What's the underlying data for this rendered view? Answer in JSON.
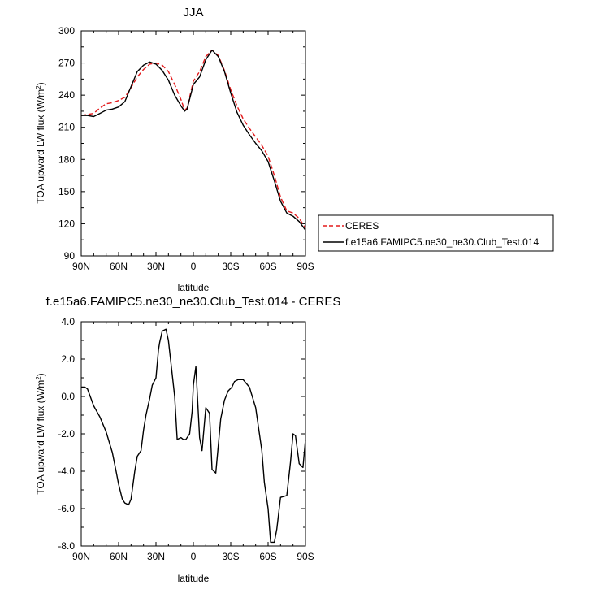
{
  "chart_data": [
    {
      "type": "line",
      "title": "JJA",
      "xlabel": "latitude",
      "ylabel": "TOA upward LW flux (W/m",
      "ylabel_sup": "2",
      "ylabel_end": ")",
      "xlim": [
        90,
        -90
      ],
      "ylim": [
        90,
        300
      ],
      "xticks": [
        90,
        60,
        30,
        0,
        -30,
        -60,
        -90
      ],
      "xtick_labels": [
        "90N",
        "60N",
        "30N",
        "0",
        "30S",
        "60S",
        "90S"
      ],
      "yticks": [
        90,
        120,
        150,
        180,
        210,
        240,
        270,
        300
      ],
      "ytick_labels": [
        "90",
        "120",
        "150",
        "180",
        "210",
        "240",
        "270",
        "300"
      ],
      "legend": "right",
      "series": [
        {
          "name": "CERES",
          "color": "#e31a1c",
          "dash": "dashed",
          "x": [
            90,
            85,
            80,
            75,
            70,
            65,
            60,
            55,
            50,
            45,
            40,
            35,
            30,
            25,
            20,
            15,
            10,
            7,
            5,
            0,
            -5,
            -10,
            -15,
            -20,
            -25,
            -30,
            -35,
            -40,
            -45,
            -50,
            -55,
            -60,
            -65,
            -70,
            -75,
            -80,
            -85,
            -90
          ],
          "y": [
            221,
            222,
            223,
            228,
            232,
            233,
            235,
            238,
            247,
            257,
            264,
            269,
            270,
            268,
            262,
            250,
            236,
            226,
            228,
            253,
            262,
            276,
            282,
            277,
            263,
            245,
            230,
            218,
            209,
            201,
            193,
            183,
            165,
            145,
            132,
            130,
            125,
            116
          ]
        },
        {
          "name": "f.e15a6.FAMIPC5.ne30_ne30.Club_Test.014",
          "color": "#000000",
          "dash": "solid",
          "x": [
            90,
            85,
            80,
            75,
            70,
            65,
            60,
            55,
            50,
            45,
            40,
            35,
            30,
            25,
            20,
            15,
            10,
            7,
            5,
            0,
            -5,
            -10,
            -15,
            -20,
            -25,
            -30,
            -35,
            -40,
            -45,
            -50,
            -55,
            -60,
            -65,
            -70,
            -75,
            -80,
            -85,
            -90
          ],
          "y": [
            221,
            221,
            220,
            223,
            226,
            227,
            229,
            234,
            248,
            262,
            268,
            271,
            269,
            263,
            254,
            240,
            230,
            225,
            227,
            250,
            257,
            273,
            282,
            276,
            262,
            242,
            224,
            212,
            203,
            195,
            188,
            178,
            160,
            141,
            130,
            127,
            122,
            114
          ]
        }
      ]
    },
    {
      "type": "line",
      "title": "f.e15a6.FAMIPC5.ne30_ne30.Club_Test.014 - CERES",
      "xlabel": "latitude",
      "ylabel": "TOA upward LW flux (W/m",
      "ylabel_sup": "2",
      "ylabel_end": ")",
      "xlim": [
        90,
        -90
      ],
      "ylim": [
        -8,
        4
      ],
      "xticks": [
        90,
        60,
        30,
        0,
        -30,
        -60,
        -90
      ],
      "xtick_labels": [
        "90N",
        "60N",
        "30N",
        "0",
        "30S",
        "60S",
        "90S"
      ],
      "yticks": [
        -8,
        -6,
        -4,
        -2,
        0,
        2,
        4
      ],
      "ytick_labels": [
        "-8.0",
        "-6.0",
        "-4.0",
        "-2.0",
        "0.0",
        "2.0",
        "4.0"
      ],
      "series": [
        {
          "color": "#000000",
          "dash": "solid",
          "x": [
            90,
            87,
            85,
            80,
            75,
            70,
            65,
            62,
            60,
            57,
            55,
            52,
            50,
            47,
            45,
            42,
            40,
            38,
            35,
            33,
            30,
            28,
            27,
            25,
            22,
            20,
            18,
            15,
            13,
            10,
            8,
            6,
            3,
            1,
            0,
            -2,
            -5,
            -7,
            -10,
            -13,
            -15,
            -18,
            -22,
            -25,
            -28,
            -31,
            -33,
            -36,
            -40,
            -45,
            -50,
            -55,
            -57,
            -60,
            -62,
            -65,
            -67,
            -70,
            -75,
            -78,
            -80,
            -82,
            -85,
            -88,
            -90
          ],
          "y": [
            0.5,
            0.5,
            0.4,
            -0.5,
            -1.1,
            -1.9,
            -3.0,
            -4.0,
            -4.7,
            -5.5,
            -5.7,
            -5.8,
            -5.5,
            -4.0,
            -3.2,
            -2.9,
            -1.8,
            -1.0,
            -0.1,
            0.6,
            1.0,
            2.5,
            2.9,
            3.5,
            3.6,
            3.0,
            1.8,
            0.0,
            -2.3,
            -2.2,
            -2.3,
            -2.3,
            -2.0,
            -0.8,
            0.6,
            1.6,
            -2.2,
            -2.9,
            -0.6,
            -0.9,
            -3.9,
            -4.1,
            -1.2,
            -0.2,
            0.3,
            0.5,
            0.8,
            0.9,
            0.9,
            0.5,
            -0.6,
            -2.9,
            -4.6,
            -6.0,
            -7.8,
            -7.8,
            -7.1,
            -5.4,
            -5.3,
            -3.5,
            -2.0,
            -2.1,
            -3.6,
            -3.8,
            -2.3
          ]
        }
      ]
    }
  ]
}
